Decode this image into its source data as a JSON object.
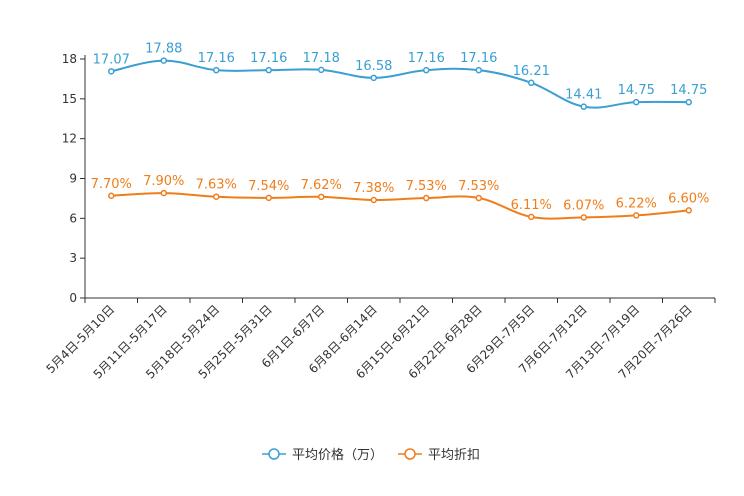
{
  "chart_data": {
    "type": "line",
    "title": "",
    "xlabel": "",
    "ylabel": "",
    "ylim": [
      0,
      18
    ],
    "yticks": [
      0,
      3,
      6,
      9,
      12,
      15,
      18
    ],
    "grid": false,
    "legend_position": "bottom",
    "categories": [
      "5月4日-5月10日",
      "5月11日-5月17日",
      "5月18日-5月24日",
      "5月25日-5月31日",
      "6月1日-6月7日",
      "6月8日-6月14日",
      "6月15日-6月21日",
      "6月22日-6月28日",
      "6月29日-7月5日",
      "7月6日-7月12日",
      "7月13日-7月19日",
      "7月20日-7月26日"
    ],
    "series": [
      {
        "name": "平均价格（万）",
        "color": "#3a9fd2",
        "values": [
          17.07,
          17.88,
          17.16,
          17.16,
          17.18,
          16.58,
          17.16,
          17.16,
          16.21,
          14.41,
          14.75,
          14.75
        ],
        "labels": [
          "17.07",
          "17.88",
          "17.16",
          "17.16",
          "17.18",
          "16.58",
          "17.16",
          "17.16",
          "16.21",
          "14.41",
          "14.75",
          "14.75"
        ]
      },
      {
        "name": "平均折扣",
        "color": "#f07d1a",
        "values": [
          7.7,
          7.9,
          7.63,
          7.54,
          7.62,
          7.38,
          7.53,
          7.53,
          6.11,
          6.07,
          6.22,
          6.6
        ],
        "labels": [
          "7.70%",
          "7.90%",
          "7.63%",
          "7.54%",
          "7.62%",
          "7.38%",
          "7.53%",
          "7.53%",
          "6.11%",
          "6.07%",
          "6.22%",
          "6.60%"
        ]
      }
    ]
  }
}
